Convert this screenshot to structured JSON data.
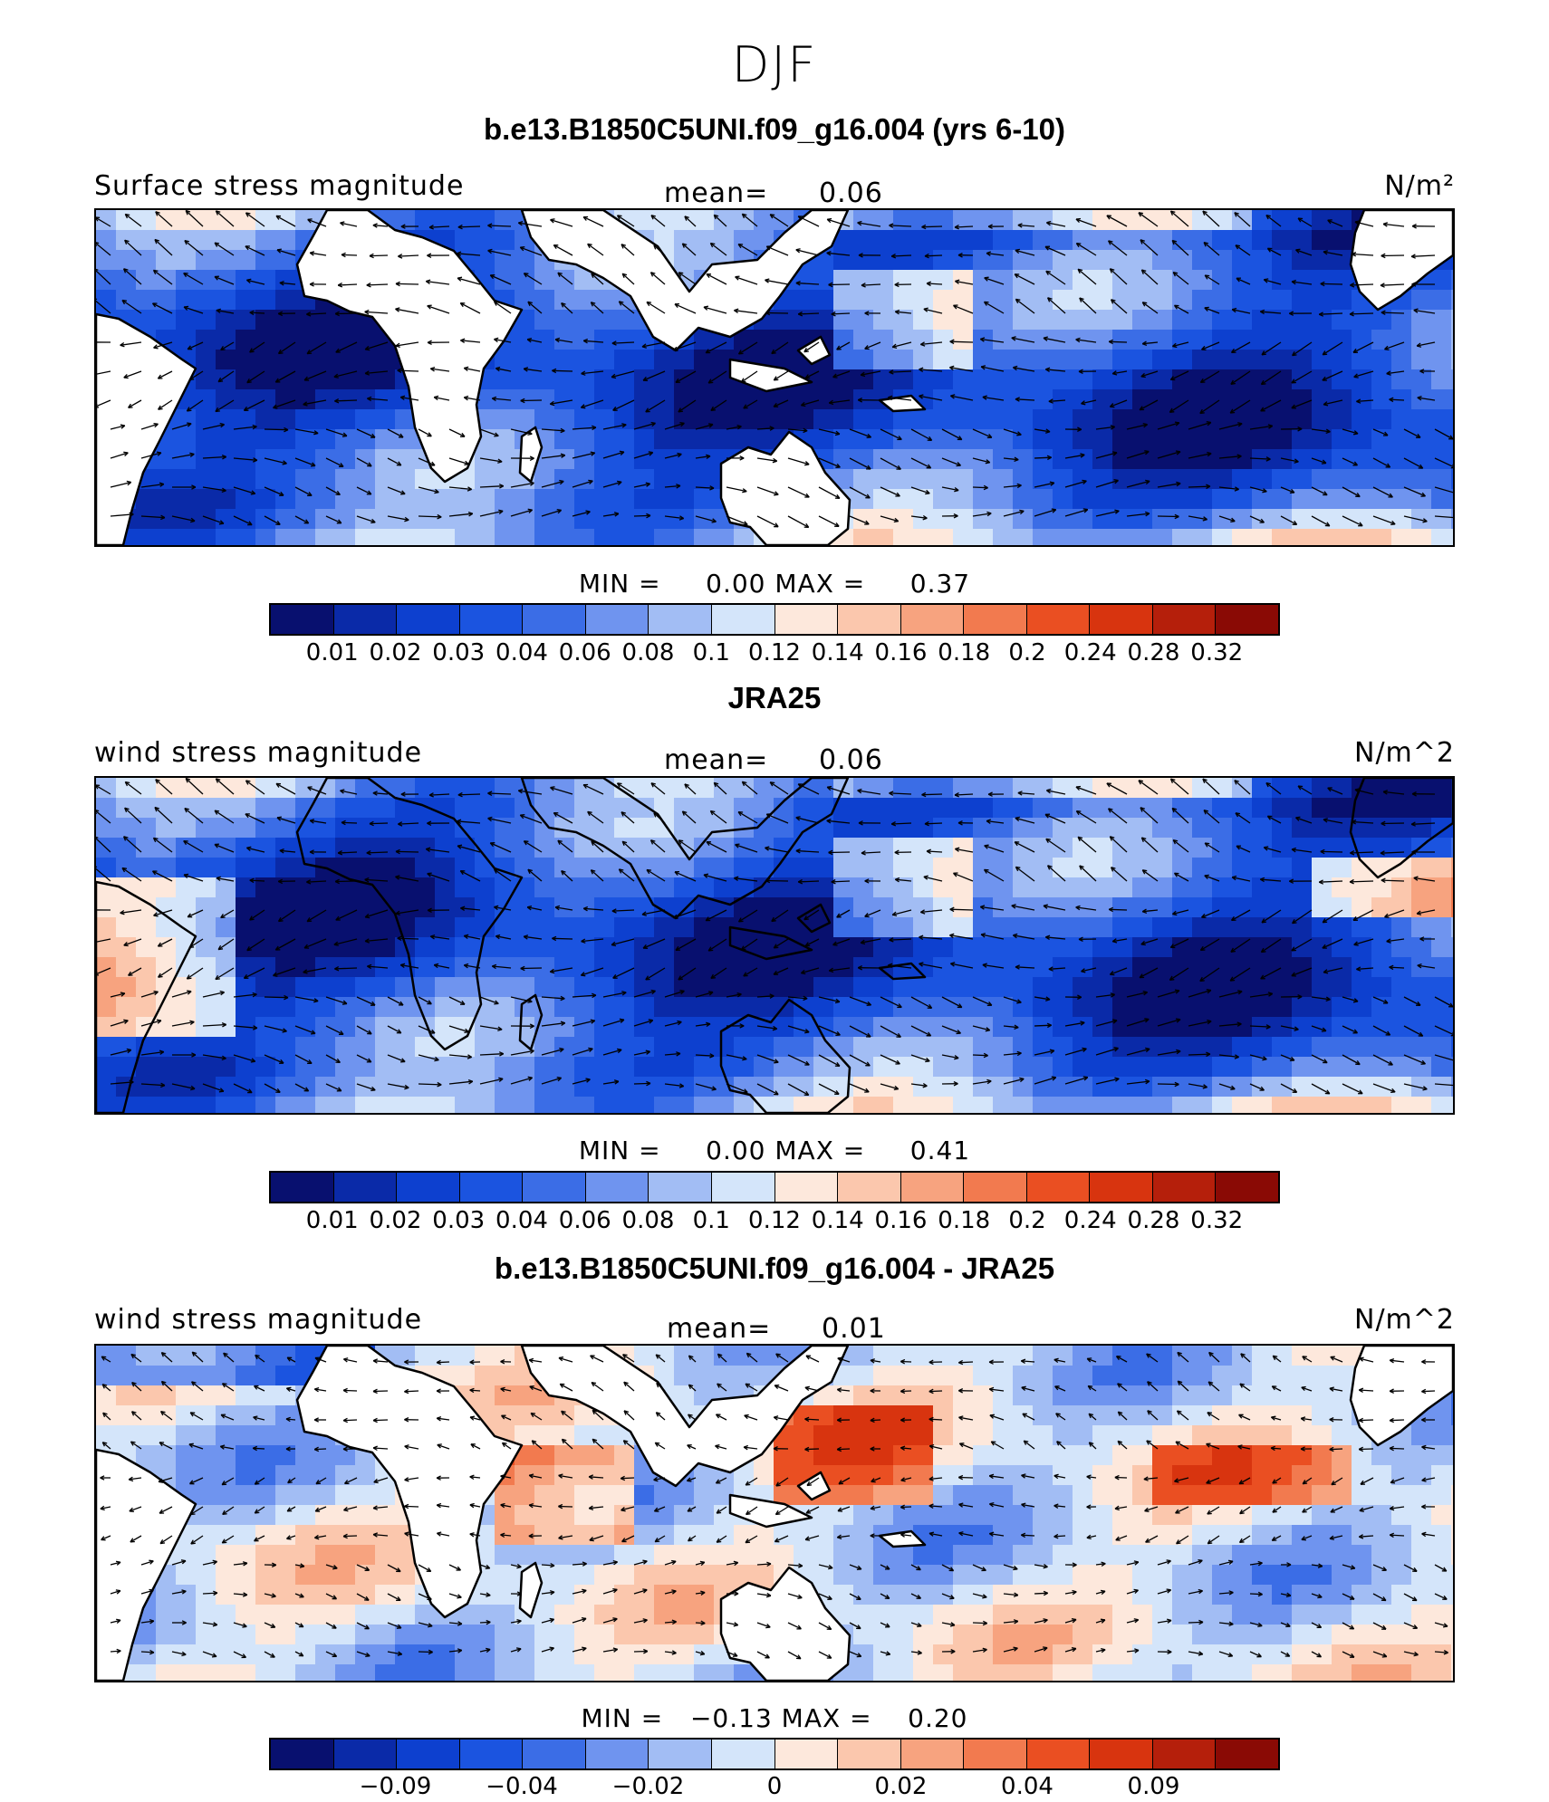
{
  "season": "DJF",
  "panels": [
    {
      "title": "b.e13.B1850C5UNI.f09_g16.004 (yrs 6-10)",
      "left_label": "Surface stress magnitude",
      "mean_label": "mean=",
      "mean_value": "0.06",
      "units": "N/m²",
      "min_label": "MIN =",
      "min_value": "0.00",
      "max_label": "MAX =",
      "max_value": "0.37",
      "land_masked": true,
      "palette": [
        "#08106f",
        "#0a2aa8",
        "#0d40cf",
        "#1b54e0",
        "#3b6de6",
        "#6f94ef",
        "#a2bdf4",
        "#d4e5fa",
        "#fde8dc",
        "#fbc7ad",
        "#f7a37f",
        "#f27a4f",
        "#ea4f22",
        "#d8340f",
        "#b51f0b",
        "#8a0a05"
      ],
      "ticks": [
        "0.01",
        "0.02",
        "0.03",
        "0.04",
        "0.06",
        "0.08",
        "0.1",
        "0.12",
        "0.14",
        "0.16",
        "0.18",
        "0.2",
        "0.24",
        "0.28",
        "0.32"
      ]
    },
    {
      "title": "JRA25",
      "left_label": "wind stress magnitude",
      "mean_label": "mean=",
      "mean_value": "0.06",
      "units": "N/m^2",
      "min_label": "MIN =",
      "min_value": "0.00",
      "max_label": "MAX =",
      "max_value": "0.41",
      "land_masked": false,
      "palette": [
        "#08106f",
        "#0a2aa8",
        "#0d40cf",
        "#1b54e0",
        "#3b6de6",
        "#6f94ef",
        "#a2bdf4",
        "#d4e5fa",
        "#fde8dc",
        "#fbc7ad",
        "#f7a37f",
        "#f27a4f",
        "#ea4f22",
        "#d8340f",
        "#b51f0b",
        "#8a0a05"
      ],
      "ticks": [
        "0.01",
        "0.02",
        "0.03",
        "0.04",
        "0.06",
        "0.08",
        "0.1",
        "0.12",
        "0.14",
        "0.16",
        "0.18",
        "0.2",
        "0.24",
        "0.28",
        "0.32"
      ]
    },
    {
      "title": "b.e13.B1850C5UNI.f09_g16.004 - JRA25",
      "left_label": "wind stress magnitude",
      "mean_label": "mean=",
      "mean_value": "0.01",
      "units": "N/m^2",
      "min_label": "MIN =",
      "min_value": "−0.13",
      "max_label": "MAX =",
      "max_value": "0.20",
      "land_masked": true,
      "palette": [
        "#08106f",
        "#0a2aa8",
        "#0d40cf",
        "#1b54e0",
        "#3b6de6",
        "#6f94ef",
        "#a2bdf4",
        "#d4e5fa",
        "#fde8dc",
        "#fbc7ad",
        "#f7a37f",
        "#f27a4f",
        "#ea4f22",
        "#d8340f",
        "#b51f0b",
        "#8a0a05"
      ],
      "ticks": [
        "−0.09",
        "−0.04",
        "−0.02",
        "0",
        "0.02",
        "0.04",
        "0.09"
      ]
    }
  ]
}
